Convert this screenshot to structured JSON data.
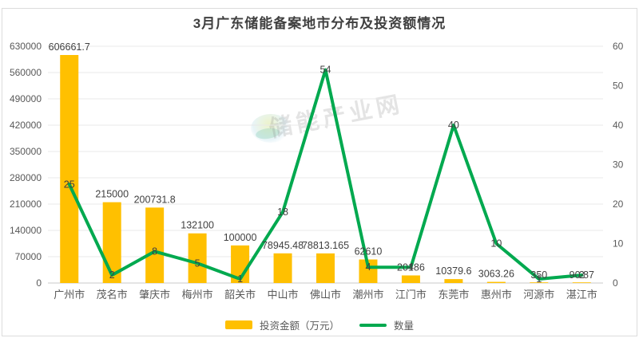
{
  "title": "3月广东储能备案地市分布及投资额情况",
  "watermark": "储能产业网",
  "legend": {
    "bar_label": "投资金额（万元）",
    "line_label": "数量"
  },
  "colors": {
    "bar": "#FFC000",
    "line": "#00A94F",
    "data_label": "#404040",
    "axis_text": "#595959",
    "grid": "#E8E8E8",
    "axis_line": "#C9C9C9",
    "title_text": "#404040"
  },
  "chart_data": {
    "type": "bar",
    "subtype": "bar+line combo",
    "title": "3月广东储能备案地市分布及投资额情况",
    "categories": [
      "广州市",
      "茂名市",
      "肇庆市",
      "梅州市",
      "韶关市",
      "中山市",
      "佛山市",
      "潮州市",
      "江门市",
      "东莞市",
      "惠州市",
      "河源市",
      "湛江市"
    ],
    "series": [
      {
        "name": "投资金额（万元）",
        "type": "bar",
        "axis": "left",
        "values": [
          606661.7,
          215000,
          200731.8,
          132100,
          100000,
          78945.48,
          78813.165,
          62610,
          20186,
          10379.6,
          3063.26,
          350,
          90.87
        ],
        "labels": [
          "606661.7",
          "215000",
          "200731.8",
          "132100",
          "100000",
          "78945.48",
          "78813.165",
          "62610",
          "20186",
          "10379.6",
          "3063.26",
          "350",
          "90.87"
        ]
      },
      {
        "name": "数量",
        "type": "line",
        "axis": "right",
        "values": [
          25,
          2,
          8,
          5,
          1,
          18,
          54,
          4,
          4,
          40,
          10,
          1,
          2
        ],
        "labels": [
          "25",
          "2",
          "8",
          "5",
          "1",
          "18",
          "54",
          "4",
          "4",
          "40",
          "10",
          "1",
          "2"
        ]
      }
    ],
    "left_axis": {
      "min": 0,
      "max": 630000,
      "step": 70000,
      "ticks": [
        0,
        70000,
        140000,
        210000,
        280000,
        350000,
        420000,
        490000,
        560000,
        630000
      ]
    },
    "right_axis": {
      "min": 0,
      "max": 60,
      "step": 10,
      "ticks": [
        0,
        10,
        20,
        30,
        40,
        50,
        60
      ]
    },
    "grid": true,
    "legend_position": "bottom"
  }
}
